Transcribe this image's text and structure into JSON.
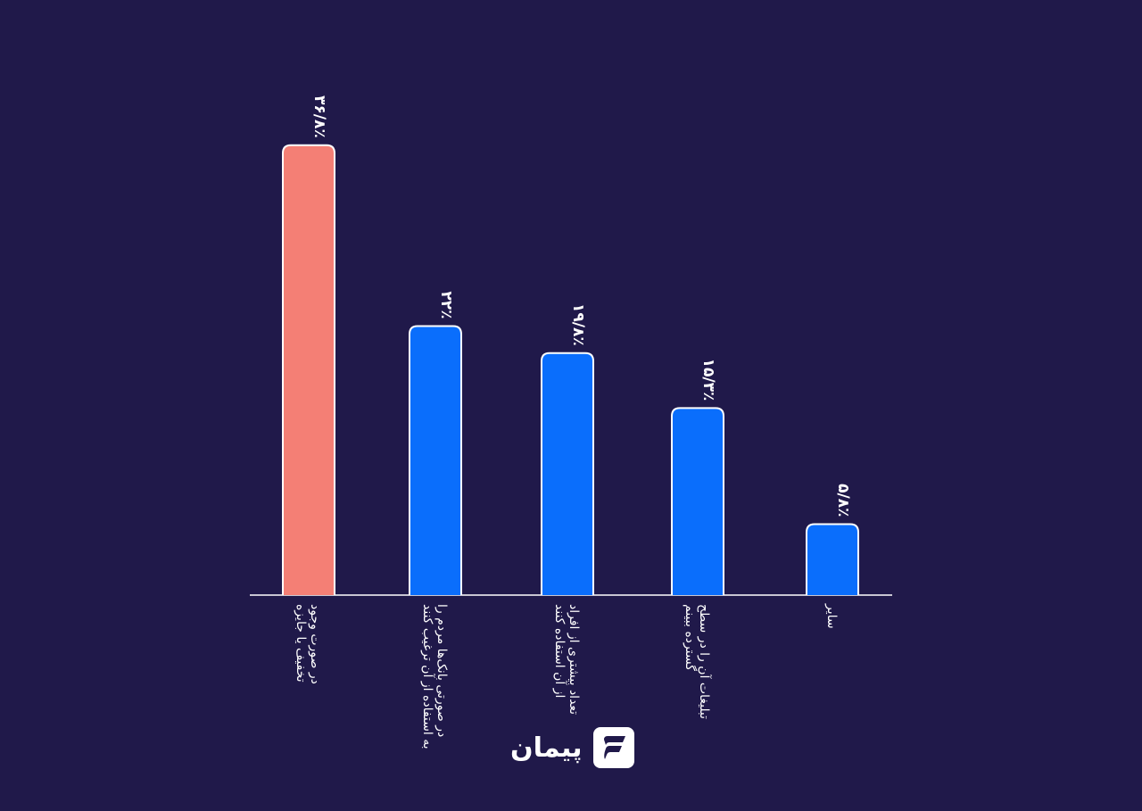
{
  "chart_data": {
    "type": "bar",
    "categories": [
      "در صورت وجود\nتخفیف یا جایزه",
      "در صورتی بانک‌ها مردم را\nبه استفاده از آن ترغیب کنند",
      "تعداد بیشتری از افراد\nاز آن استفاده کنند",
      "تبلیغات آن را در سطح\nگسترده ببینم",
      "سایر"
    ],
    "values": [
      36.8,
      22,
      19.8,
      15.3,
      5.8
    ],
    "value_labels": [
      "۳۶/۸٪",
      "۲۲٪",
      "۱۹/۸٪",
      "۱۵/۳٪",
      "۵/۸٪"
    ],
    "ylim": [
      0,
      40
    ],
    "grid": false,
    "legend": "none",
    "colors": {
      "highlight": "#f47f75",
      "default": "#0a6efc",
      "stroke": "#ffffff",
      "axis": "#ffffff",
      "text": "#ffffff"
    },
    "highlight_index": 0
  },
  "brand": {
    "name": "پیمان",
    "icon": "peyman-logo-icon"
  }
}
